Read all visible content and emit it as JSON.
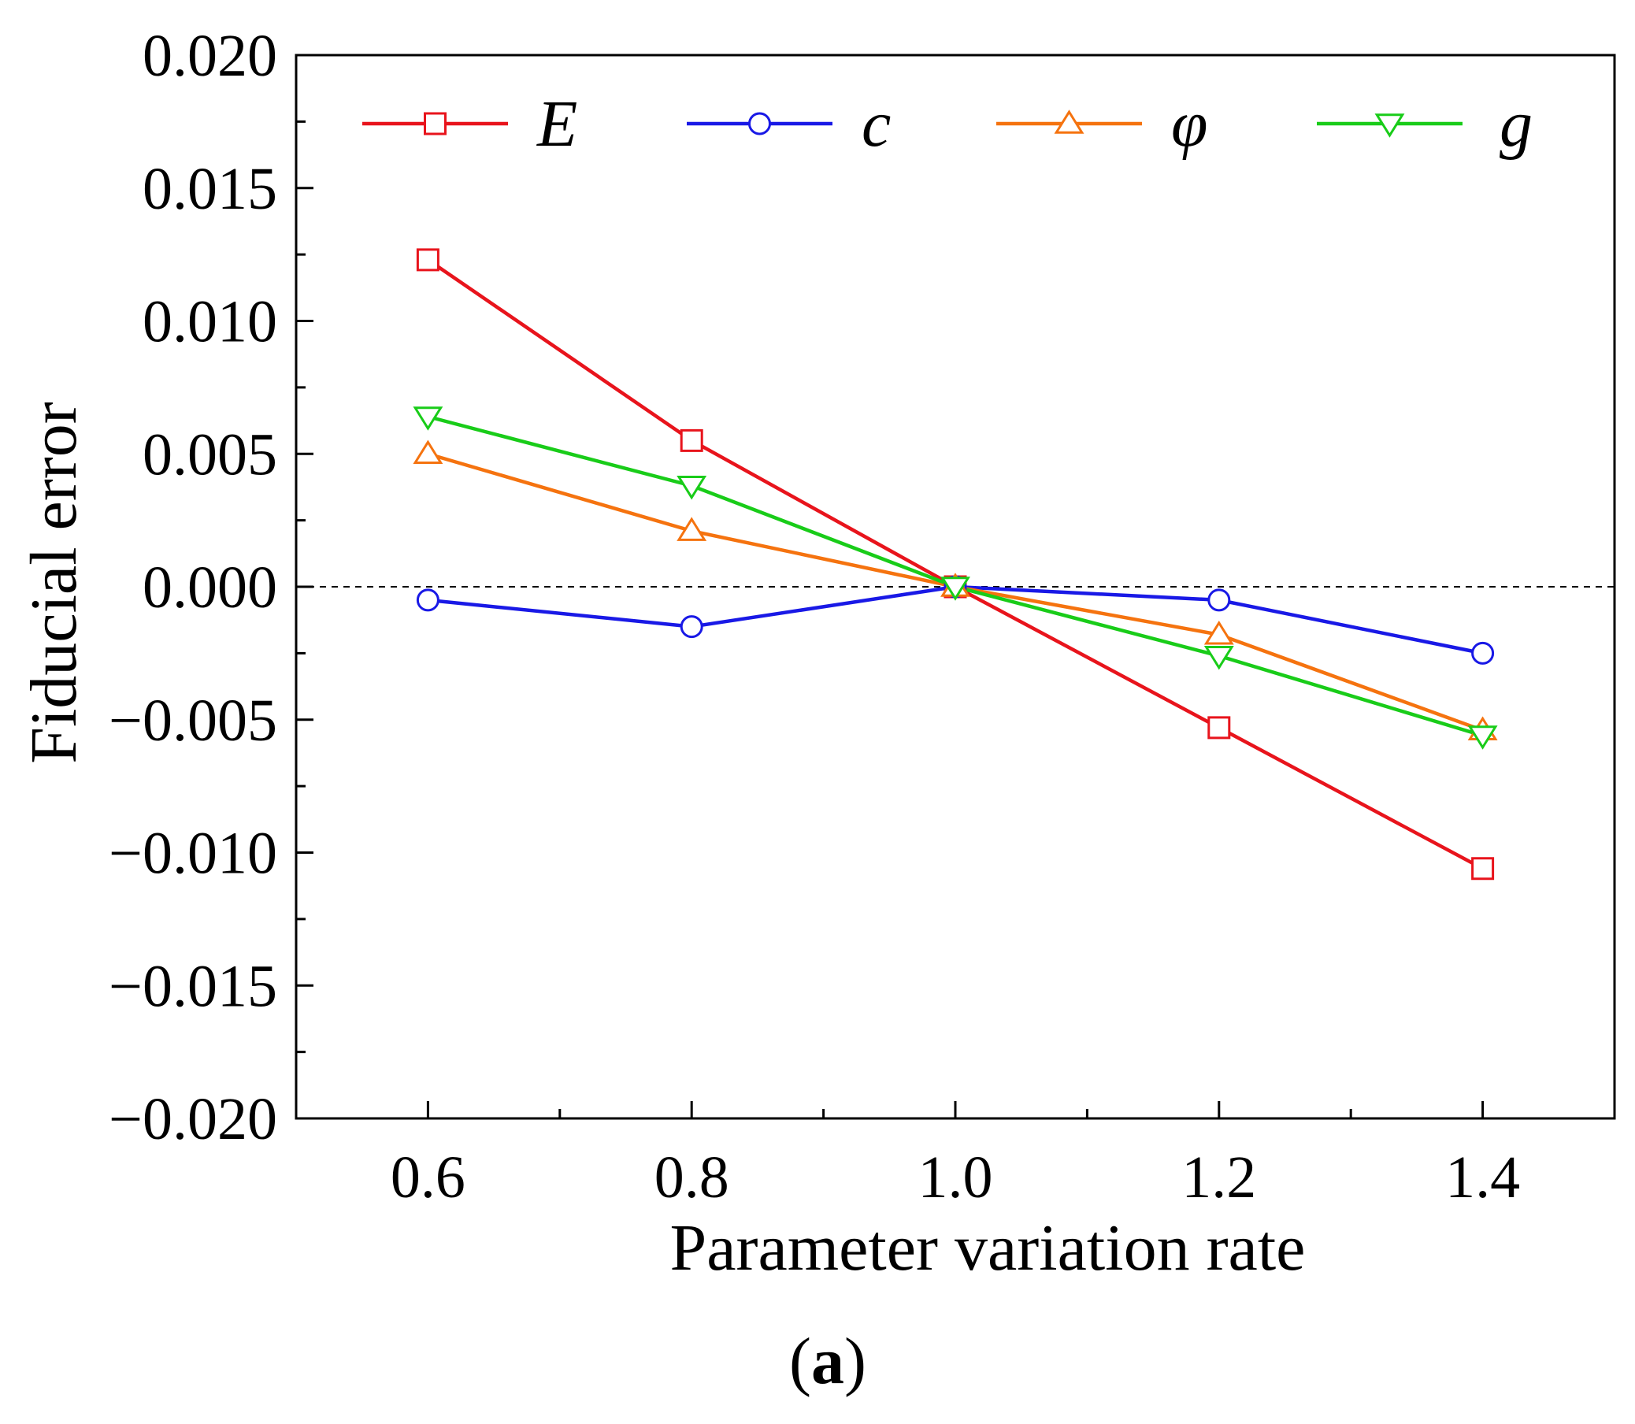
{
  "panel_label": {
    "open": "(",
    "letter": "a",
    "close": ")"
  },
  "chart_data": {
    "type": "line",
    "title": "",
    "xlabel": "Parameter variation rate",
    "ylabel": "Fiducial error",
    "xlim": [
      0.5,
      1.5
    ],
    "ylim": [
      -0.02,
      0.02
    ],
    "x_ticks": [
      0.6,
      0.8,
      1.0,
      1.2,
      1.4
    ],
    "x_tick_labels": [
      "0.6",
      "0.8",
      "1.0",
      "1.2",
      "1.4"
    ],
    "x_minor_ticks": [
      0.5,
      0.7,
      0.9,
      1.1,
      1.3,
      1.5
    ],
    "y_ticks": [
      0.02,
      0.015,
      0.01,
      0.005,
      0.0,
      -0.005,
      -0.01,
      -0.015,
      -0.02
    ],
    "y_tick_labels": [
      "0.020",
      "0.015",
      "0.010",
      "0.005",
      "0.000",
      "−0.005",
      "−0.010",
      "−0.015",
      "−0.020"
    ],
    "y_minor_ticks": [
      0.0175,
      0.0125,
      0.0075,
      0.0025,
      -0.0025,
      -0.0075,
      -0.0125,
      -0.0175
    ],
    "reference_line": {
      "y": 0.0,
      "style": "dashed"
    },
    "grid": false,
    "legend_position": "top",
    "x": [
      0.6,
      0.8,
      1.0,
      1.2,
      1.4
    ],
    "series": [
      {
        "name": "E",
        "color": "#e8141c",
        "marker": "square",
        "values": [
          0.0123,
          0.0055,
          0.0,
          -0.0053,
          -0.0106
        ]
      },
      {
        "name": "c",
        "color": "#1919e6",
        "marker": "circle",
        "values": [
          -0.0005,
          -0.0015,
          0.0,
          -0.0005,
          -0.0025
        ]
      },
      {
        "name": "φ",
        "color": "#f5730f",
        "marker": "triangle-up",
        "values": [
          0.005,
          0.0021,
          0.0,
          -0.0018,
          -0.0054
        ]
      },
      {
        "name": "g",
        "color": "#19cc19",
        "marker": "triangle-down",
        "values": [
          0.0064,
          0.0038,
          0.0,
          -0.0026,
          -0.0056
        ]
      }
    ]
  }
}
